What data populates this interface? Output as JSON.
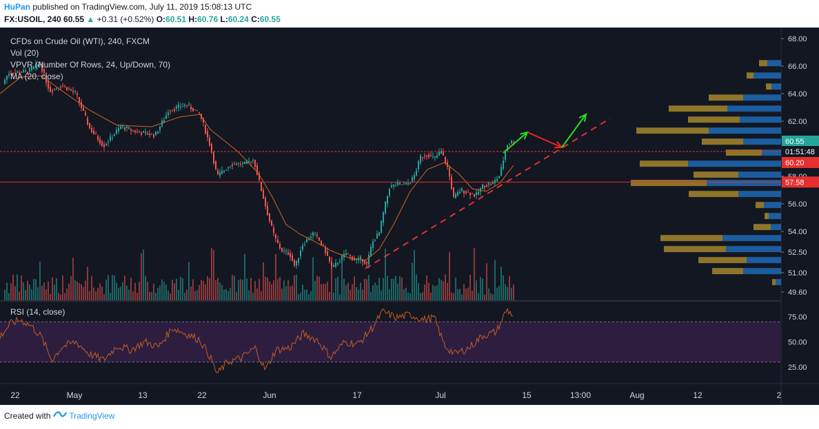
{
  "header": {
    "author": "HuPan",
    "published_text": "published on TradingView.com, July 11, 2019 15:08:13 UTC",
    "symbol": "FX:USOIL, 240",
    "last": "60.55",
    "change_arrow": "▲",
    "change": "+0.31 (+0.52%)",
    "o_label": "O:",
    "o": "60.51",
    "h_label": "H:",
    "h": "60.76",
    "l_label": "L:",
    "l": "60.24",
    "c_label": "C:",
    "c": "60.55"
  },
  "legend": {
    "title": "CFDs on Crude Oil (WTI), 240, FXCM",
    "vol": "Vol (20)",
    "vpvr": "VPVR (Number Of Rows, 24, Up/Down, 70)",
    "ma": "MA (20, close)",
    "rsi": "RSI (14, close)"
  },
  "footer": {
    "created_with": "Created with",
    "brand": "TradingView",
    "logo_icon": "tradingview-logo-icon"
  },
  "colors": {
    "background": "#131722",
    "rsi_band": "#2d1e40",
    "up": "#26a69a",
    "down": "#ef5350",
    "ma": "#d3661d",
    "rsi": "#c45c23",
    "vp_up": "#1f6fbf",
    "vp_down": "#b8962e",
    "support": "#e5302f",
    "arrow_up": "#22e022",
    "arrow_down": "#f02424"
  },
  "chart_data": {
    "type": "candlestick",
    "price_axis": {
      "ticks": [
        "68.00",
        "66.00",
        "64.00",
        "62.00",
        "60.20",
        "58.00",
        "57.58",
        "56.00",
        "54.00",
        "52.50",
        "51.00",
        "49.60"
      ],
      "ylim": [
        49.0,
        68.8
      ]
    },
    "price_badges": [
      {
        "label": "60.55",
        "value": 60.55,
        "color": "#26a69a"
      },
      {
        "label": "01:51:48",
        "value": 59.8,
        "color": "#131722"
      },
      {
        "label": "60.20",
        "value": 59.0,
        "color": "#e5302f"
      },
      {
        "label": "57.58",
        "value": 57.58,
        "color": "#e5302f"
      }
    ],
    "time_axis": [
      "22",
      "May",
      "13",
      "22",
      "Jun",
      "17",
      "Jul",
      "15",
      "13:00",
      "Aug",
      "12",
      "2"
    ],
    "price_path": [
      [
        0,
        64.3
      ],
      [
        12,
        65.5
      ],
      [
        40,
        65.6
      ],
      [
        58,
        66.2
      ],
      [
        72,
        64.2
      ],
      [
        90,
        64.6
      ],
      [
        110,
        64.0
      ],
      [
        130,
        61.5
      ],
      [
        150,
        60.2
      ],
      [
        175,
        61.6
      ],
      [
        200,
        61.2
      ],
      [
        225,
        61.0
      ],
      [
        245,
        62.8
      ],
      [
        270,
        63.2
      ],
      [
        290,
        62.5
      ],
      [
        305,
        60.2
      ],
      [
        315,
        58.0
      ],
      [
        335,
        58.9
      ],
      [
        355,
        58.9
      ],
      [
        368,
        59.2
      ],
      [
        378,
        57.2
      ],
      [
        388,
        55.3
      ],
      [
        398,
        53.6
      ],
      [
        408,
        52.6
      ],
      [
        420,
        52.4
      ],
      [
        428,
        51.4
      ],
      [
        438,
        53.0
      ],
      [
        455,
        53.9
      ],
      [
        470,
        52.8
      ],
      [
        482,
        51.3
      ],
      [
        492,
        51.9
      ],
      [
        502,
        52.4
      ],
      [
        515,
        51.9
      ],
      [
        525,
        52.0
      ],
      [
        532,
        51.6
      ],
      [
        540,
        53.2
      ],
      [
        550,
        53.9
      ],
      [
        558,
        55.8
      ],
      [
        565,
        57.2
      ],
      [
        575,
        57.4
      ],
      [
        590,
        57.4
      ],
      [
        600,
        57.9
      ],
      [
        610,
        59.4
      ],
      [
        620,
        59.6
      ],
      [
        630,
        59.3
      ],
      [
        640,
        59.8
      ],
      [
        650,
        58.5
      ],
      [
        658,
        56.4
      ],
      [
        668,
        57.0
      ],
      [
        680,
        56.8
      ],
      [
        690,
        56.6
      ],
      [
        700,
        57.3
      ],
      [
        715,
        57.5
      ],
      [
        725,
        58.1
      ],
      [
        735,
        60.3
      ],
      [
        745,
        60.55
      ]
    ],
    "ma_20": [
      [
        0,
        64.0
      ],
      [
        30,
        65.2
      ],
      [
        60,
        65.3
      ],
      [
        90,
        64.2
      ],
      [
        130,
        62.8
      ],
      [
        170,
        61.7
      ],
      [
        220,
        61.6
      ],
      [
        260,
        62.3
      ],
      [
        290,
        62.5
      ],
      [
        305,
        61.4
      ],
      [
        325,
        60.6
      ],
      [
        345,
        59.8
      ],
      [
        375,
        58.2
      ],
      [
        395,
        56.5
      ],
      [
        415,
        54.5
      ],
      [
        435,
        53.8
      ],
      [
        455,
        53.3
      ],
      [
        480,
        52.6
      ],
      [
        505,
        52.1
      ],
      [
        530,
        51.9
      ],
      [
        550,
        52.7
      ],
      [
        570,
        54.4
      ],
      [
        595,
        56.9
      ],
      [
        620,
        58.5
      ],
      [
        645,
        59.0
      ],
      [
        665,
        58.2
      ],
      [
        685,
        57.1
      ],
      [
        705,
        56.9
      ],
      [
        725,
        57.5
      ],
      [
        745,
        58.8
      ]
    ],
    "support_levels": [
      59.8,
      57.58
    ],
    "trendline": {
      "from": [
        530,
        51.3
      ],
      "to": [
        885,
        62.2
      ]
    },
    "projection_up": [
      [
        730,
        59.7
      ],
      [
        765,
        61.2
      ]
    ],
    "projection_down": [
      [
        765,
        61.2
      ],
      [
        815,
        60.1
      ]
    ],
    "projection_up2": [
      [
        815,
        60.1
      ],
      [
        850,
        62.5
      ]
    ],
    "rsi": {
      "ylim": [
        10,
        90
      ],
      "levels": [
        70,
        30
      ],
      "ticks": [
        "75.00",
        "50.00",
        "25.00"
      ],
      "path": [
        [
          0,
          55
        ],
        [
          15,
          68
        ],
        [
          30,
          72
        ],
        [
          45,
          66
        ],
        [
          60,
          55
        ],
        [
          75,
          32
        ],
        [
          90,
          45
        ],
        [
          110,
          50
        ],
        [
          130,
          38
        ],
        [
          150,
          32
        ],
        [
          170,
          46
        ],
        [
          190,
          42
        ],
        [
          210,
          50
        ],
        [
          230,
          45
        ],
        [
          250,
          64
        ],
        [
          270,
          58
        ],
        [
          290,
          52
        ],
        [
          305,
          35
        ],
        [
          315,
          18
        ],
        [
          330,
          30
        ],
        [
          350,
          34
        ],
        [
          370,
          44
        ],
        [
          385,
          22
        ],
        [
          400,
          42
        ],
        [
          420,
          44
        ],
        [
          440,
          58
        ],
        [
          460,
          52
        ],
        [
          480,
          35
        ],
        [
          500,
          50
        ],
        [
          520,
          48
        ],
        [
          540,
          64
        ],
        [
          555,
          80
        ],
        [
          575,
          74
        ],
        [
          595,
          77
        ],
        [
          615,
          72
        ],
        [
          630,
          74
        ],
        [
          645,
          46
        ],
        [
          660,
          38
        ],
        [
          680,
          44
        ],
        [
          700,
          56
        ],
        [
          720,
          60
        ],
        [
          735,
          82
        ],
        [
          745,
          76
        ]
      ]
    },
    "volume_profile": [
      {
        "price": 66.2,
        "up": 12,
        "down": 20
      },
      {
        "price": 65.3,
        "up": 10,
        "down": 40
      },
      {
        "price": 64.5,
        "up": 8,
        "down": 14
      },
      {
        "price": 63.7,
        "up": 50,
        "down": 55
      },
      {
        "price": 62.9,
        "up": 85,
        "down": 78
      },
      {
        "price": 62.1,
        "up": 75,
        "down": 60
      },
      {
        "price": 61.3,
        "up": 105,
        "down": 105
      },
      {
        "price": 60.5,
        "up": 60,
        "down": 55
      },
      {
        "price": 59.7,
        "up": 52,
        "down": 28
      },
      {
        "price": 58.9,
        "up": 70,
        "down": 135
      },
      {
        "price": 58.1,
        "up": 65,
        "down": 62
      },
      {
        "price": 57.5,
        "up": 110,
        "down": 108
      },
      {
        "price": 56.7,
        "up": 72,
        "down": 62
      },
      {
        "price": 55.9,
        "up": 12,
        "down": 25
      },
      {
        "price": 55.1,
        "up": 6,
        "down": 18
      },
      {
        "price": 54.3,
        "up": 25,
        "down": 15
      },
      {
        "price": 53.5,
        "up": 90,
        "down": 85
      },
      {
        "price": 52.7,
        "up": 90,
        "down": 80
      },
      {
        "price": 51.9,
        "up": 70,
        "down": 50
      },
      {
        "price": 51.1,
        "up": 45,
        "down": 55
      },
      {
        "price": 50.3,
        "up": 5,
        "down": 8
      }
    ]
  }
}
